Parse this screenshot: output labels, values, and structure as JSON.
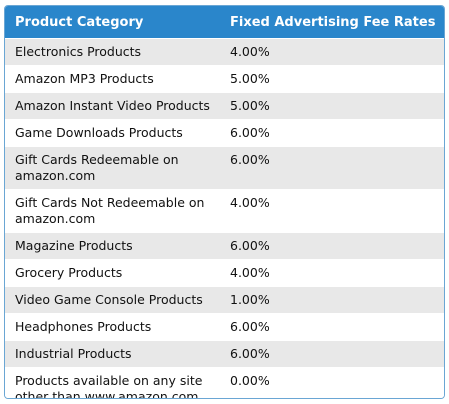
{
  "table": {
    "headers": [
      "Product Category",
      "Fixed Advertising Fee Rates"
    ],
    "rows": [
      {
        "category": "Electronics Products",
        "rate": "4.00%"
      },
      {
        "category": "Amazon MP3 Products",
        "rate": "5.00%"
      },
      {
        "category": "Amazon Instant Video Products",
        "rate": "5.00%"
      },
      {
        "category": "Game Downloads Products",
        "rate": "6.00%"
      },
      {
        "category": "Gift Cards Redeemable on amazon.com",
        "rate": "6.00%"
      },
      {
        "category": "Gift Cards Not Redeemable on amazon.com",
        "rate": "4.00%"
      },
      {
        "category": "Magazine Products",
        "rate": "6.00%"
      },
      {
        "category": "Grocery Products",
        "rate": "4.00%"
      },
      {
        "category": "Video Game Console Products",
        "rate": "1.00%"
      },
      {
        "category": "Headphones Products",
        "rate": "6.00%"
      },
      {
        "category": "Industrial Products",
        "rate": "6.00%"
      },
      {
        "category": "Products available on any site other than www.amazon.com",
        "rate": "0.00%"
      }
    ]
  },
  "colors": {
    "header_bg": "#2a86cb",
    "header_text": "#ffffff",
    "row_stripe": "#e8e8e8",
    "border": "#6aa6d4"
  }
}
